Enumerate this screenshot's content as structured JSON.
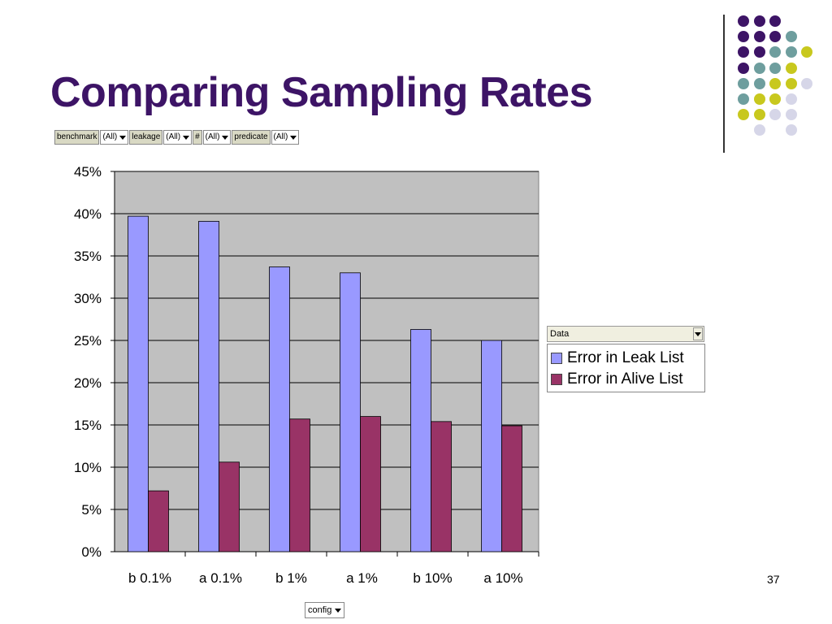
{
  "slide": {
    "title": "Comparing Sampling Rates",
    "page_number": "37"
  },
  "pivot_fields": [
    {
      "label": "benchmark",
      "value": "(All)"
    },
    {
      "label": "leakage",
      "value": "(All)"
    },
    {
      "label": "#",
      "value": "(All)"
    },
    {
      "label": "predicate",
      "value": "(All)"
    }
  ],
  "legend": {
    "header": "Data"
  },
  "config_field": "config",
  "decor_dots": [
    {
      "color": "#3d1466"
    },
    {
      "color": "#6e9e9e"
    },
    {
      "color": "#c8c81e"
    },
    {
      "color": "#d6d6e8"
    }
  ],
  "chart_data": {
    "type": "bar",
    "categories": [
      "b 0.1%",
      "a 0.1%",
      "b 1%",
      "a 1%",
      "b 10%",
      "a 10%"
    ],
    "series": [
      {
        "name": "Error in Leak List",
        "color": "#9999ff",
        "values": [
          0.397,
          0.391,
          0.337,
          0.33,
          0.263,
          0.25
        ]
      },
      {
        "name": "Error in Alive List",
        "color": "#993366",
        "values": [
          0.072,
          0.106,
          0.157,
          0.16,
          0.154,
          0.149
        ]
      }
    ],
    "ylim": [
      0,
      0.45
    ],
    "yticks": [
      "0%",
      "5%",
      "10%",
      "15%",
      "20%",
      "25%",
      "30%",
      "35%",
      "40%",
      "45%"
    ],
    "plot_background": "#c0c0c0",
    "grid": true,
    "legend_position": "right"
  }
}
